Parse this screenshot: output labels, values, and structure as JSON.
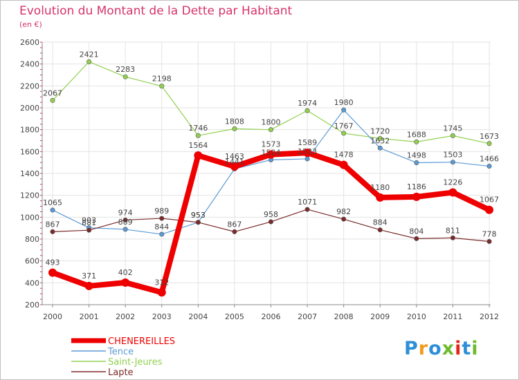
{
  "header": {
    "title": "Evolution du Montant de la Dette par Habitant",
    "subtitle": "(en €)"
  },
  "logo": {
    "text": "Proxiti",
    "colors": [
      "#2e8fd6",
      "#f29a1e",
      "#2e8fd6",
      "#6dbb2c",
      "#e1251b",
      "#2e8fd6",
      "#6dbb2c"
    ]
  },
  "chart_data": {
    "type": "line",
    "title": "Evolution du Montant de la Dette par Habitant",
    "subtitle": "(en €)",
    "xlabel": "",
    "ylabel": "",
    "x": [
      "2000",
      "2001",
      "2002",
      "2003",
      "2004",
      "2005",
      "2006",
      "2007",
      "2008",
      "2009",
      "2010",
      "2011",
      "2012"
    ],
    "ylim": [
      200,
      2600
    ],
    "yticks": [
      200,
      400,
      600,
      800,
      1000,
      1200,
      1400,
      1600,
      1800,
      2000,
      2200,
      2400,
      2600
    ],
    "grid": true,
    "legend_position": "bottom-left",
    "series": [
      {
        "name": "CHENEREILLES",
        "color": "#ee0000",
        "values": [
          493,
          371,
          402,
          312,
          1564,
          1463,
          1573,
          1589,
          1478,
          1180,
          1186,
          1226,
          1067
        ]
      },
      {
        "name": "Tence",
        "color": "#5b9bd5",
        "values": [
          1065,
          903,
          889,
          844,
          953,
          1441,
          1524,
          1533,
          1980,
          1632,
          1498,
          1503,
          1466
        ]
      },
      {
        "name": "Saint-Jeures",
        "color": "#92d050",
        "values": [
          2067,
          2421,
          2283,
          2198,
          1746,
          1808,
          1800,
          1974,
          1767,
          1720,
          1688,
          1745,
          1673
        ]
      },
      {
        "name": "Lapte",
        "color": "#7b2a2a",
        "values": [
          867,
          881,
          974,
          989,
          953,
          867,
          958,
          1071,
          982,
          884,
          804,
          811,
          778
        ]
      }
    ]
  }
}
